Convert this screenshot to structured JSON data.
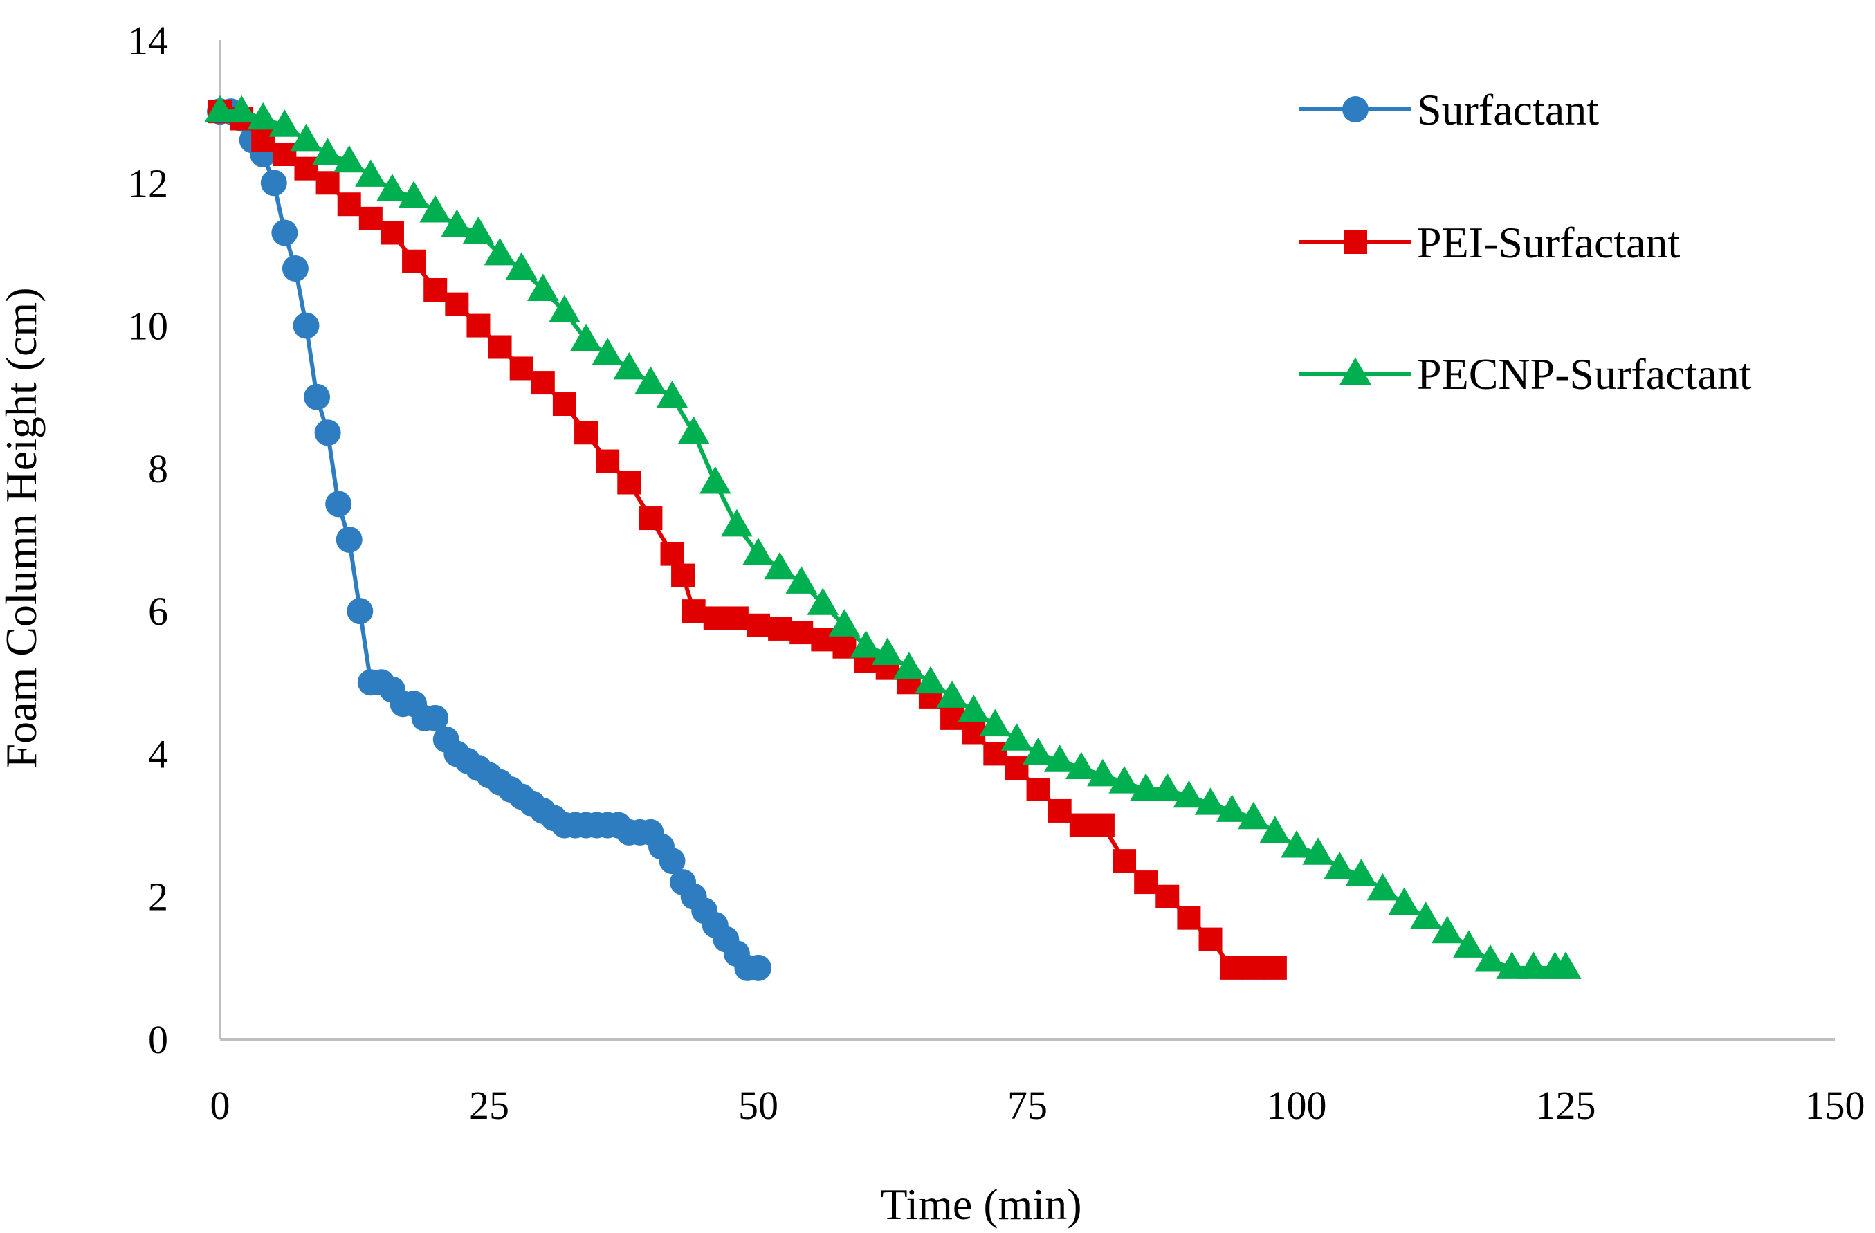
{
  "chart_data": {
    "type": "line",
    "title": "",
    "xlabel": "Time (min)",
    "ylabel": "Foam Column Height (cm)",
    "xlim": [
      0,
      150
    ],
    "ylim": [
      0,
      14
    ],
    "xticks": [
      0,
      25,
      50,
      75,
      100,
      125,
      150
    ],
    "yticks": [
      0,
      2,
      4,
      6,
      8,
      10,
      12,
      14
    ],
    "grid": false,
    "legend_position": "top-right",
    "series": [
      {
        "name": "Surfactant",
        "color": "#2E7DC0",
        "marker": "circle",
        "points": [
          [
            0,
            13.0
          ],
          [
            1,
            13.0
          ],
          [
            2,
            12.9
          ],
          [
            3,
            12.6
          ],
          [
            4,
            12.4
          ],
          [
            5,
            12.0
          ],
          [
            6,
            11.3
          ],
          [
            7,
            10.8
          ],
          [
            8,
            10.0
          ],
          [
            9,
            9.0
          ],
          [
            10,
            8.5
          ],
          [
            11,
            7.5
          ],
          [
            12,
            7.0
          ],
          [
            13,
            6.0
          ],
          [
            14,
            5.0
          ],
          [
            15,
            5.0
          ],
          [
            16,
            4.9
          ],
          [
            17,
            4.7
          ],
          [
            18,
            4.7
          ],
          [
            19,
            4.5
          ],
          [
            20,
            4.5
          ],
          [
            21,
            4.2
          ],
          [
            22,
            4.0
          ],
          [
            23,
            3.9
          ],
          [
            24,
            3.8
          ],
          [
            25,
            3.7
          ],
          [
            26,
            3.6
          ],
          [
            27,
            3.5
          ],
          [
            28,
            3.4
          ],
          [
            29,
            3.3
          ],
          [
            30,
            3.2
          ],
          [
            31,
            3.1
          ],
          [
            32,
            3.0
          ],
          [
            33,
            3.0
          ],
          [
            34,
            3.0
          ],
          [
            35,
            3.0
          ],
          [
            36,
            3.0
          ],
          [
            37,
            3.0
          ],
          [
            38,
            2.9
          ],
          [
            39,
            2.9
          ],
          [
            40,
            2.9
          ],
          [
            41,
            2.7
          ],
          [
            42,
            2.5
          ],
          [
            43,
            2.2
          ],
          [
            44,
            2.0
          ],
          [
            45,
            1.8
          ],
          [
            46,
            1.6
          ],
          [
            47,
            1.4
          ],
          [
            48,
            1.2
          ],
          [
            49,
            1.0
          ],
          [
            50,
            1.0
          ]
        ]
      },
      {
        "name": "PEI-Surfactant",
        "color": "#E00000",
        "marker": "square",
        "points": [
          [
            0,
            13.0
          ],
          [
            2,
            12.9
          ],
          [
            4,
            12.6
          ],
          [
            6,
            12.4
          ],
          [
            8,
            12.2
          ],
          [
            10,
            12.0
          ],
          [
            12,
            11.7
          ],
          [
            14,
            11.5
          ],
          [
            16,
            11.3
          ],
          [
            18,
            10.9
          ],
          [
            20,
            10.5
          ],
          [
            22,
            10.3
          ],
          [
            24,
            10.0
          ],
          [
            26,
            9.7
          ],
          [
            28,
            9.4
          ],
          [
            30,
            9.2
          ],
          [
            32,
            8.9
          ],
          [
            34,
            8.5
          ],
          [
            36,
            8.1
          ],
          [
            38,
            7.8
          ],
          [
            40,
            7.3
          ],
          [
            42,
            6.8
          ],
          [
            43,
            6.5
          ],
          [
            44,
            6.0
          ],
          [
            46,
            5.9
          ],
          [
            48,
            5.9
          ],
          [
            50,
            5.8
          ],
          [
            52,
            5.75
          ],
          [
            54,
            5.7
          ],
          [
            56,
            5.6
          ],
          [
            58,
            5.5
          ],
          [
            60,
            5.3
          ],
          [
            62,
            5.2
          ],
          [
            64,
            5.0
          ],
          [
            66,
            4.8
          ],
          [
            68,
            4.5
          ],
          [
            70,
            4.3
          ],
          [
            72,
            4.0
          ],
          [
            74,
            3.8
          ],
          [
            76,
            3.5
          ],
          [
            78,
            3.2
          ],
          [
            80,
            3.0
          ],
          [
            82,
            3.0
          ],
          [
            84,
            2.5
          ],
          [
            86,
            2.2
          ],
          [
            88,
            2.0
          ],
          [
            90,
            1.7
          ],
          [
            92,
            1.4
          ],
          [
            94,
            1.0
          ],
          [
            96,
            1.0
          ],
          [
            98,
            1.0
          ]
        ]
      },
      {
        "name": "PECNP-Surfactant",
        "color": "#00B050",
        "marker": "triangle",
        "points": [
          [
            0,
            13.0
          ],
          [
            2,
            13.0
          ],
          [
            4,
            12.9
          ],
          [
            6,
            12.8
          ],
          [
            8,
            12.6
          ],
          [
            10,
            12.4
          ],
          [
            12,
            12.3
          ],
          [
            14,
            12.1
          ],
          [
            16,
            11.9
          ],
          [
            18,
            11.8
          ],
          [
            20,
            11.6
          ],
          [
            22,
            11.4
          ],
          [
            24,
            11.3
          ],
          [
            26,
            11.0
          ],
          [
            28,
            10.8
          ],
          [
            30,
            10.5
          ],
          [
            32,
            10.2
          ],
          [
            34,
            9.8
          ],
          [
            36,
            9.6
          ],
          [
            38,
            9.4
          ],
          [
            40,
            9.2
          ],
          [
            42,
            9.0
          ],
          [
            44,
            8.5
          ],
          [
            46,
            7.8
          ],
          [
            48,
            7.2
          ],
          [
            50,
            6.8
          ],
          [
            52,
            6.6
          ],
          [
            54,
            6.4
          ],
          [
            56,
            6.1
          ],
          [
            58,
            5.8
          ],
          [
            60,
            5.5
          ],
          [
            62,
            5.4
          ],
          [
            64,
            5.2
          ],
          [
            66,
            5.0
          ],
          [
            68,
            4.8
          ],
          [
            70,
            4.6
          ],
          [
            72,
            4.4
          ],
          [
            74,
            4.2
          ],
          [
            76,
            4.0
          ],
          [
            78,
            3.9
          ],
          [
            80,
            3.8
          ],
          [
            82,
            3.7
          ],
          [
            84,
            3.6
          ],
          [
            86,
            3.5
          ],
          [
            88,
            3.5
          ],
          [
            90,
            3.4
          ],
          [
            92,
            3.3
          ],
          [
            94,
            3.2
          ],
          [
            96,
            3.1
          ],
          [
            98,
            2.9
          ],
          [
            100,
            2.7
          ],
          [
            102,
            2.6
          ],
          [
            104,
            2.4
          ],
          [
            106,
            2.3
          ],
          [
            108,
            2.1
          ],
          [
            110,
            1.9
          ],
          [
            112,
            1.7
          ],
          [
            114,
            1.5
          ],
          [
            116,
            1.3
          ],
          [
            118,
            1.1
          ],
          [
            120,
            1.0
          ],
          [
            122,
            1.0
          ],
          [
            124,
            1.0
          ],
          [
            125,
            1.0
          ]
        ]
      }
    ]
  }
}
